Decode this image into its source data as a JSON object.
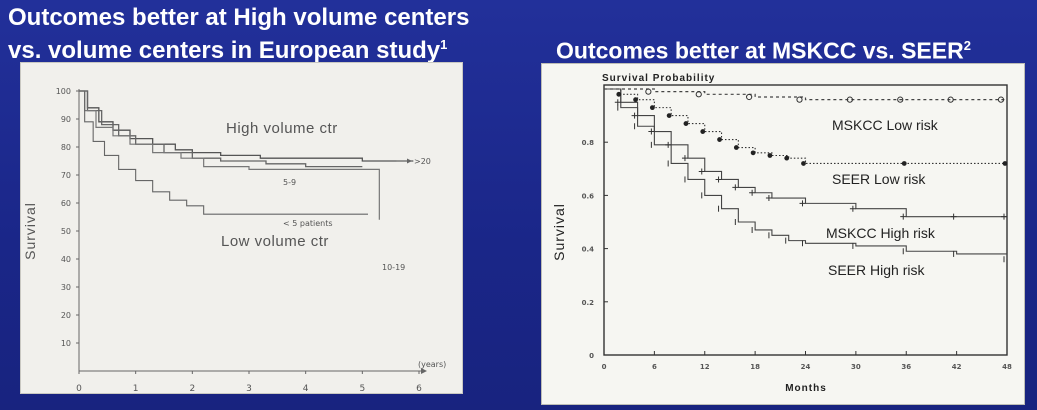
{
  "slide": {
    "title_left_line1": "Outcomes better at High volume centers",
    "title_left_line2": "vs. volume centers in European study",
    "title_left_sup": "1",
    "title_right": "Outcomes better at MSKCC vs. SEER",
    "title_right_sup": "2"
  },
  "chart_data": [
    {
      "type": "line",
      "ylabel": "Survival",
      "xlabel": "(years)",
      "xlim": [
        0,
        6
      ],
      "ylim": [
        0,
        100
      ],
      "x_ticks": [
        "0",
        "1",
        "2",
        "3",
        "4",
        "5",
        "6"
      ],
      "y_ticks": [
        "10",
        "20",
        "30",
        "40",
        "50",
        "60",
        "70",
        "80",
        "90",
        "100"
      ],
      "annotations": [
        "High volume ctr",
        "Low volume ctr",
        ">20",
        "5-9",
        "< 5 patients",
        "10-19"
      ],
      "series": [
        {
          "name": ">20",
          "x": [
            0,
            0.15,
            0.35,
            0.6,
            0.9,
            1.3,
            1.7,
            2.0,
            2.5,
            3.2,
            4.0,
            5.0,
            5.9
          ],
          "y": [
            100,
            94,
            89,
            86,
            83,
            81,
            79,
            78,
            77,
            76,
            76,
            75,
            75
          ]
        },
        {
          "name": "5-9",
          "x": [
            0,
            0.15,
            0.4,
            0.7,
            1.0,
            1.5,
            2.0,
            2.5,
            3.3,
            4.0,
            5.0
          ],
          "y": [
            100,
            93,
            88,
            84,
            81,
            78,
            76,
            75,
            74,
            73,
            73
          ]
        },
        {
          "name": "10-19",
          "x": [
            0,
            0.1,
            0.3,
            0.6,
            0.9,
            1.3,
            1.8,
            2.2,
            3.0,
            4.0,
            5.3,
            5.3
          ],
          "y": [
            100,
            93,
            87,
            84,
            81,
            78,
            76,
            73,
            72,
            72,
            72,
            54
          ]
        },
        {
          "name": "< 5 patients",
          "x": [
            0,
            0.1,
            0.25,
            0.45,
            0.7,
            1.0,
            1.3,
            1.6,
            1.9,
            2.2,
            3.0,
            4.0,
            5.1
          ],
          "y": [
            100,
            89,
            82,
            77,
            72,
            68,
            64,
            61,
            59,
            56,
            56,
            56,
            56
          ]
        }
      ]
    },
    {
      "type": "line",
      "title": "Survival Probability",
      "ylabel": "Survival",
      "xlabel": "Months",
      "xlim": [
        0,
        48
      ],
      "ylim": [
        0,
        1
      ],
      "x_ticks": [
        "0",
        "6",
        "12",
        "18",
        "24",
        "30",
        "36",
        "42",
        "48"
      ],
      "y_ticks": [
        "0",
        "0.2",
        "0.4",
        "0.6",
        "0.8"
      ],
      "annotations": [
        "MSKCC Low risk",
        "SEER Low risk",
        "MSKCC  High risk",
        "SEER High risk"
      ],
      "series": [
        {
          "name": "MSKCC Low risk",
          "x": [
            0,
            6,
            12,
            18,
            24,
            30,
            36,
            42,
            48
          ],
          "y": [
            1.0,
            0.99,
            0.98,
            0.97,
            0.96,
            0.96,
            0.96,
            0.96,
            0.96
          ]
        },
        {
          "name": "SEER Low risk",
          "x": [
            0,
            2,
            4,
            6,
            8,
            10,
            12,
            14,
            16,
            18,
            20,
            22,
            24,
            36,
            48
          ],
          "y": [
            1.0,
            0.98,
            0.96,
            0.93,
            0.9,
            0.87,
            0.84,
            0.81,
            0.78,
            0.76,
            0.75,
            0.74,
            0.72,
            0.72,
            0.72
          ]
        },
        {
          "name": "MSKCC  High risk",
          "x": [
            0,
            2,
            4,
            6,
            8,
            10,
            12,
            14,
            16,
            18,
            20,
            24,
            30,
            36,
            42,
            48
          ],
          "y": [
            1.0,
            0.95,
            0.9,
            0.84,
            0.79,
            0.74,
            0.69,
            0.66,
            0.63,
            0.61,
            0.59,
            0.57,
            0.55,
            0.52,
            0.52,
            0.52
          ]
        },
        {
          "name": "SEER High risk",
          "x": [
            0,
            2,
            4,
            6,
            8,
            10,
            12,
            14,
            16,
            18,
            20,
            22,
            24,
            30,
            36,
            42,
            48
          ],
          "y": [
            1.0,
            0.93,
            0.86,
            0.79,
            0.72,
            0.66,
            0.6,
            0.55,
            0.5,
            0.47,
            0.45,
            0.43,
            0.42,
            0.41,
            0.39,
            0.38,
            0.36
          ]
        }
      ]
    }
  ]
}
